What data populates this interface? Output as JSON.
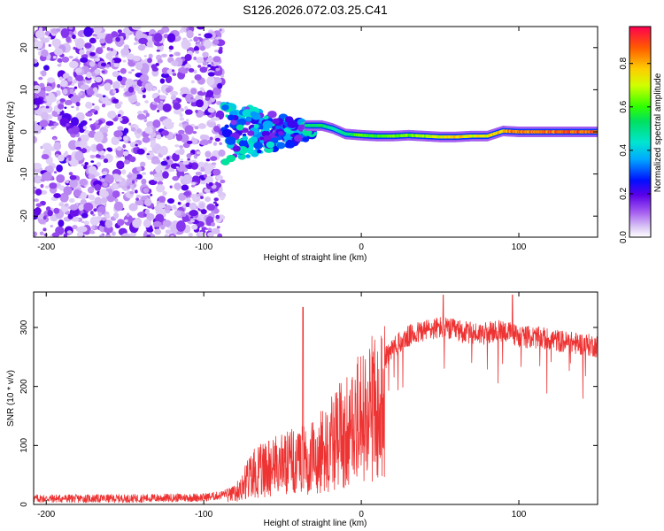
{
  "chart_data": [
    {
      "type": "heatmap",
      "title": "S126.2026.072.03.25.C41",
      "xlabel": "Height of straight line (km)",
      "ylabel": "Frequency (Hz)",
      "xlim": [
        -208,
        150
      ],
      "ylim": [
        -25,
        25
      ],
      "xticks": [
        -200,
        -100,
        0,
        100
      ],
      "xtick_labels": [
        "-200",
        "-100",
        "0",
        "100"
      ],
      "yticks": [
        -20,
        -10,
        0,
        10,
        20
      ],
      "ytick_labels": [
        "-20",
        "-10",
        "0",
        "10",
        "20"
      ],
      "colorbar": {
        "label": "Normalized spectral amplitude",
        "range": [
          0,
          0.97
        ],
        "ticks": [
          0,
          0.2,
          0.4,
          0.6,
          0.8
        ],
        "tick_labels": [
          "0.0",
          "0.2",
          "0.4",
          "0.6",
          "0.8"
        ]
      },
      "noise_region_x": [
        -208,
        -88
      ],
      "transition_region_x": [
        -88,
        -30
      ],
      "signal_ridge": {
        "x": [
          -35,
          -25,
          -18,
          -10,
          0,
          10,
          20,
          30,
          40,
          50,
          60,
          70,
          80,
          90,
          100,
          110,
          120,
          130,
          140,
          150
        ],
        "frequency": [
          1.5,
          1.5,
          0.8,
          -0.5,
          -0.8,
          -1.0,
          -1.0,
          -0.8,
          -1.0,
          -1.2,
          -1.2,
          -1.0,
          -1.0,
          0.2,
          0.0,
          0.0,
          0.0,
          0.0,
          0.0,
          0.0
        ],
        "amplitude": [
          0.55,
          0.6,
          0.5,
          0.55,
          0.7,
          0.65,
          0.7,
          0.7,
          0.75,
          0.8,
          0.85,
          0.8,
          0.8,
          0.9,
          0.95,
          0.95,
          0.95,
          0.97,
          0.97,
          0.97
        ]
      }
    },
    {
      "type": "line",
      "xlabel": "Height of straight line (km)",
      "ylabel": "SNR (10 * v/v)",
      "xlim": [
        -208,
        150
      ],
      "ylim": [
        0,
        360
      ],
      "xticks": [
        -200,
        -100,
        0,
        100
      ],
      "xtick_labels": [
        "-200",
        "-100",
        "0",
        "100"
      ],
      "yticks": [
        0,
        100,
        200,
        300
      ],
      "ytick_labels": [
        "0",
        "100",
        "200",
        "300"
      ],
      "color": "#ee3333",
      "series": [
        {
          "name": "SNR",
          "x": [
            -208,
            -150,
            -100,
            -90,
            -80,
            -75,
            -70,
            -60,
            -50,
            -40,
            -30,
            -20,
            -10,
            0,
            10,
            20,
            30,
            40,
            50,
            60,
            70,
            80,
            90,
            100,
            110,
            120,
            130,
            140,
            150
          ],
          "values": [
            10,
            10,
            12,
            15,
            25,
            45,
            70,
            85,
            95,
            100,
            110,
            140,
            170,
            200,
            230,
            265,
            285,
            295,
            300,
            295,
            290,
            290,
            295,
            285,
            283,
            280,
            275,
            272,
            268
          ]
        }
      ],
      "peaks": [
        {
          "x": -37,
          "value": 334
        },
        {
          "x": 52,
          "value": 355
        },
        {
          "x": 96,
          "value": 355
        }
      ]
    }
  ]
}
